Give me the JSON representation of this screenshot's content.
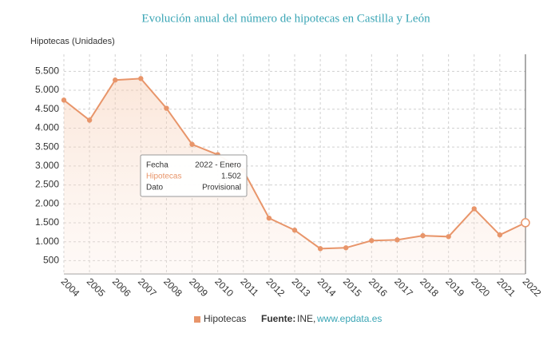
{
  "chart_data": {
    "type": "line",
    "title": "Evolución anual del número de hipotecas en Castilla y León",
    "y_label": "Hipotecas (Unidades)",
    "categories": [
      "2004",
      "2005",
      "2006",
      "2007",
      "2008",
      "2009",
      "2010",
      "2011",
      "2012",
      "2013",
      "2014",
      "2015",
      "2016",
      "2017",
      "2018",
      "2019",
      "2020",
      "2021",
      "2022"
    ],
    "series": [
      {
        "name": "Hipotecas",
        "color": "#e8956a",
        "values": [
          4740,
          4210,
          5270,
          5310,
          4525,
          3572,
          3300,
          2880,
          1623,
          1305,
          818,
          840,
          1030,
          1050,
          1160,
          1135,
          1870,
          1180,
          1502
        ]
      }
    ],
    "ylim": [
      150,
      5950
    ],
    "yticks": [
      500,
      {
        "value": 1000,
        "label": "1.000"
      },
      {
        "value": 1500,
        "label": "1.500"
      },
      {
        "value": 2000,
        "label": "2.000"
      },
      {
        "value": 2500,
        "label": "2.500"
      },
      {
        "value": 3000,
        "label": "3.000"
      },
      {
        "value": 3500,
        "label": "3.500"
      },
      {
        "value": 4000,
        "label": "4.000"
      },
      {
        "value": 4500,
        "label": "4.500"
      },
      {
        "value": 5000,
        "label": "5.000"
      },
      {
        "value": 5500,
        "label": "5.500"
      }
    ],
    "grid": true,
    "tooltip": {
      "rows": [
        [
          "Fecha",
          "2022 - Enero"
        ],
        [
          "Hipotecas",
          "1.502"
        ],
        [
          "Dato",
          "Provisional"
        ]
      ]
    },
    "source": {
      "label": "Fuente:",
      "name": "INE,",
      "link": "www.epdata.es"
    }
  }
}
